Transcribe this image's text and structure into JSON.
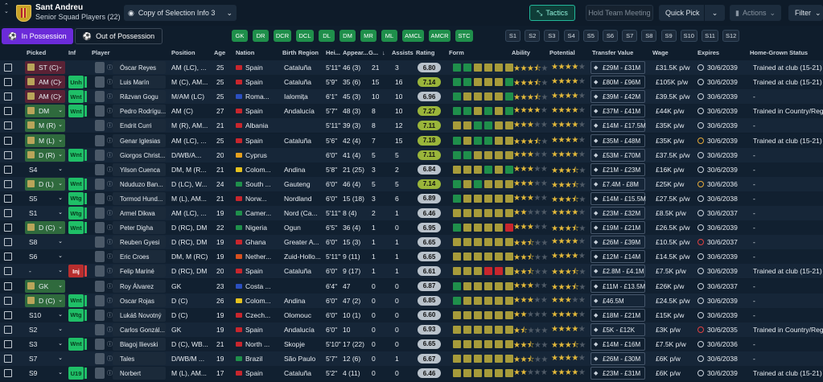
{
  "header": {
    "club_name": "Sant Andreu",
    "squad_label": "Senior Squad Players (22)",
    "selection_view": "Copy of Selection Info 3",
    "tactics_label": "Tactics",
    "hold_meeting_label": "Hold Team Meeting",
    "quick_pick_label": "Quick Pick",
    "actions_label": "Actions",
    "filter_label": "Filter"
  },
  "possession_tabs": {
    "in": "In Possession",
    "out": "Out of Possession"
  },
  "position_chips": [
    "GK",
    "DR",
    "DCR",
    "DCL",
    "DL",
    "DM",
    "MR",
    "ML",
    "AMCL",
    "AMCR",
    "STC"
  ],
  "set_chips": [
    "S1",
    "S2",
    "S3",
    "S4",
    "S5",
    "S6",
    "S7",
    "S8",
    "S9",
    "S10",
    "S11",
    "S12"
  ],
  "columns": {
    "picked": "Picked",
    "inf": "Inf",
    "player": "Player",
    "position": "Position",
    "age": "Age",
    "nation": "Nation",
    "birth_region": "Birth Region",
    "height": "Hei...",
    "appearances": "Appear...",
    "goals": "G...",
    "assists": "Assists",
    "rating": "Rating",
    "form": "Form",
    "ability": "Ability",
    "potential": "Potential",
    "transfer_value": "Transfer Value",
    "wage": "Wage",
    "expires": "Expires",
    "home_grown": "Home-Grown Status"
  },
  "colors": {
    "form_green": "#1f8f4b",
    "form_olive": "#a79b3a",
    "form_red": "#c8262d",
    "form_gray": "#59636e"
  },
  "players": [
    {
      "picked": "ST (C)",
      "picked_style": "selr",
      "inf": "",
      "name": "Óscar Reyes",
      "position": "AM (LC), ...",
      "age": "25",
      "nation": "Spain",
      "flag": "#c8262d",
      "birth_region": "Cataluña",
      "height": "5'11\"",
      "apps": "46 (3)",
      "goals": "21",
      "assists": "3",
      "rating": "6.80",
      "rating_good": false,
      "form": [
        "g",
        "g",
        "o",
        "o",
        "o",
        "o"
      ],
      "ability": 3.5,
      "potential": 4,
      "value": "£29M - £31M",
      "wage": "£31.5K p/w",
      "exp_icon": "w",
      "expires": "30/6/2039",
      "hg": "Trained at club (15-21)"
    },
    {
      "picked": "AM (C)",
      "picked_style": "selr",
      "inf": "Unh",
      "inf_color": "g",
      "name": "Luis Marín",
      "position": "M (C), AM...",
      "age": "25",
      "nation": "Spain",
      "flag": "#c8262d",
      "birth_region": "Cataluña",
      "height": "5'9\"",
      "apps": "35 (6)",
      "goals": "15",
      "assists": "16",
      "rating": "7.14",
      "rating_good": true,
      "form": [
        "g",
        "g",
        "o",
        "o",
        "o",
        "g"
      ],
      "ability": 3.5,
      "potential": 4,
      "value": "£80M - £96M",
      "wage": "£105K p/w",
      "exp_icon": "w",
      "expires": "30/6/2039",
      "hg": "Trained at club (15-21)"
    },
    {
      "picked": "AM (C)",
      "picked_style": "selr",
      "inf": "Wnt",
      "inf_color": "g",
      "name": "Răzvan Gogu",
      "position": "M/AM (LC)",
      "age": "25",
      "nation": "Roma...",
      "flag": "#2b4fbf",
      "birth_region": "Ialomița",
      "height": "6'1\"",
      "apps": "45 (3)",
      "goals": "10",
      "assists": "10",
      "rating": "6.96",
      "rating_good": false,
      "form": [
        "g",
        "o",
        "o",
        "o",
        "o",
        "g"
      ],
      "ability": 3.5,
      "potential": 4,
      "value": "£39M - £42M",
      "wage": "£39.5K p/w",
      "exp_icon": "w",
      "expires": "30/6/2039",
      "hg": "-"
    },
    {
      "picked": "DM",
      "picked_style": "sel",
      "inf": "Wnt",
      "inf_color": "g",
      "name": "Pedro Rodrígu...",
      "position": "AM (C)",
      "age": "27",
      "nation": "Spain",
      "flag": "#c8262d",
      "birth_region": "Andalucía",
      "height": "5'7\"",
      "apps": "48 (3)",
      "goals": "8",
      "assists": "10",
      "rating": "7.27",
      "rating_good": true,
      "form": [
        "g",
        "g",
        "o",
        "g",
        "o",
        "g"
      ],
      "ability": 4,
      "potential": 4,
      "value": "£37M - £41M",
      "wage": "£44K p/w",
      "exp_icon": "w",
      "expires": "30/6/2039",
      "hg": "Trained in Country/Reg"
    },
    {
      "picked": "M (R)",
      "picked_style": "sel",
      "inf": "",
      "name": "Endrit Curri",
      "position": "M (R), AM...",
      "age": "21",
      "nation": "Albania",
      "flag": "#c8262d",
      "birth_region": "",
      "height": "5'11\"",
      "apps": "39 (3)",
      "goals": "8",
      "assists": "12",
      "rating": "7.11",
      "rating_good": true,
      "form": [
        "o",
        "o",
        "g",
        "g",
        "o",
        "o"
      ],
      "ability": 3,
      "potential": 4,
      "value": "£14M - £17.5M",
      "wage": "£35K p/w",
      "exp_icon": "w",
      "expires": "30/6/2039",
      "hg": "-"
    },
    {
      "picked": "M (L)",
      "picked_style": "sel",
      "inf": "",
      "name": "Genar Iglesias",
      "position": "AM (LC), ...",
      "age": "25",
      "nation": "Spain",
      "flag": "#c8262d",
      "birth_region": "Cataluña",
      "height": "5'6\"",
      "apps": "42 (4)",
      "goals": "7",
      "assists": "15",
      "rating": "7.18",
      "rating_good": true,
      "form": [
        "g",
        "o",
        "g",
        "g",
        "o",
        "o"
      ],
      "ability": 3.5,
      "potential": 4,
      "value": "£35M - £48M",
      "wage": "£35K p/w",
      "exp_icon": "o",
      "expires": "30/6/2039",
      "hg": "Trained at club (15-21)"
    },
    {
      "picked": "D (R)",
      "picked_style": "sel",
      "inf": "Wnt",
      "inf_color": "g",
      "name": "Giorgos Christ...",
      "position": "D/WB/A...",
      "age": "20",
      "nation": "Cyprus",
      "flag": "#e6a11f",
      "birth_region": "",
      "height": "6'0\"",
      "apps": "41 (4)",
      "goals": "5",
      "assists": "5",
      "rating": "7.11",
      "rating_good": true,
      "form": [
        "g",
        "g",
        "o",
        "o",
        "o",
        "o"
      ],
      "ability": 3,
      "potential": 4,
      "value": "£53M - £70M",
      "wage": "£37.5K p/w",
      "exp_icon": "w",
      "expires": "30/6/2039",
      "hg": "-"
    },
    {
      "picked": "S4",
      "picked_style": "plain",
      "inf": "",
      "name": "Yilson Cuenca",
      "position": "DM, M (R...",
      "age": "21",
      "nation": "Colom...",
      "flag": "#e6c21f",
      "birth_region": "Andina",
      "height": "5'8\"",
      "apps": "21 (25)",
      "goals": "3",
      "assists": "2",
      "rating": "6.84",
      "rating_good": false,
      "form": [
        "o",
        "o",
        "o",
        "g",
        "o",
        "g"
      ],
      "ability": 3,
      "potential": 3.5,
      "value": "£21M - £23M",
      "wage": "£16K p/w",
      "exp_icon": "w",
      "expires": "30/6/2039",
      "hg": "-"
    },
    {
      "picked": "D (L)",
      "picked_style": "sel",
      "inf": "Wnt",
      "inf_color": "g",
      "name": "Nduduzo Ban...",
      "position": "D (LC), W...",
      "age": "24",
      "nation": "South ...",
      "flag": "#1f8f4b",
      "birth_region": "Gauteng",
      "height": "6'0\"",
      "apps": "46 (4)",
      "goals": "5",
      "assists": "5",
      "rating": "7.14",
      "rating_good": true,
      "form": [
        "g",
        "o",
        "g",
        "o",
        "o",
        "o"
      ],
      "ability": 3,
      "potential": 3.5,
      "value": "£7.4M - £8M",
      "wage": "£25K p/w",
      "exp_icon": "o",
      "expires": "30/6/2036",
      "hg": "-"
    },
    {
      "picked": "S5",
      "picked_style": "plain",
      "inf": "Wtg",
      "inf_color": "g",
      "name": "Tormod Hund...",
      "position": "M (L), AM...",
      "age": "21",
      "nation": "Norw...",
      "flag": "#c8262d",
      "birth_region": "Nordland",
      "height": "6'0\"",
      "apps": "15 (18)",
      "goals": "3",
      "assists": "6",
      "rating": "6.89",
      "rating_good": false,
      "form": [
        "g",
        "o",
        "o",
        "o",
        "o",
        "o"
      ],
      "ability": 3,
      "potential": 3.5,
      "value": "£14M - £15.5M",
      "wage": "£27.5K p/w",
      "exp_icon": "w",
      "expires": "30/6/2038",
      "hg": "-"
    },
    {
      "picked": "S1",
      "picked_style": "plain",
      "inf": "Wtg",
      "inf_color": "g",
      "name": "Armel Dikwa",
      "position": "AM (LC), ...",
      "age": "19",
      "nation": "Camer...",
      "flag": "#1f8f4b",
      "birth_region": "Nord (Ca...",
      "height": "5'11\"",
      "apps": "8 (4)",
      "goals": "2",
      "assists": "1",
      "rating": "6.46",
      "rating_good": false,
      "form": [
        "o",
        "o",
        "o",
        "o",
        "o",
        "o"
      ],
      "ability": 2,
      "potential": 4,
      "value": "£23M - £32M",
      "wage": "£8.5K p/w",
      "exp_icon": "w",
      "expires": "30/6/2037",
      "hg": "-"
    },
    {
      "picked": "D (C)",
      "picked_style": "sel",
      "inf": "Wnt",
      "inf_color": "g",
      "name": "Peter Digha",
      "position": "D (RC), DM",
      "age": "22",
      "nation": "Nigeria",
      "flag": "#1f8f4b",
      "birth_region": "Ogun",
      "height": "6'5\"",
      "apps": "36 (4)",
      "goals": "1",
      "assists": "0",
      "rating": "6.95",
      "rating_good": false,
      "form": [
        "g",
        "o",
        "o",
        "o",
        "o",
        "r"
      ],
      "ability": 3,
      "potential": 3.5,
      "value": "£19M - £21M",
      "wage": "£26.5K p/w",
      "exp_icon": "w",
      "expires": "30/6/2039",
      "hg": "-"
    },
    {
      "picked": "S8",
      "picked_style": "plain",
      "inf": "",
      "name": "Reuben Gyesi",
      "position": "D (RC), DM",
      "age": "19",
      "nation": "Ghana",
      "flag": "#c8262d",
      "birth_region": "Greater A...",
      "height": "6'0\"",
      "apps": "15 (3)",
      "goals": "1",
      "assists": "1",
      "rating": "6.65",
      "rating_good": false,
      "form": [
        "o",
        "o",
        "o",
        "o",
        "o",
        "o"
      ],
      "ability": 2.5,
      "potential": 4,
      "value": "£26M - £39M",
      "wage": "£10.5K p/w",
      "exp_icon": "r",
      "expires": "30/6/2037",
      "hg": "-"
    },
    {
      "picked": "S6",
      "picked_style": "plain",
      "inf": "",
      "name": "Eric Croes",
      "position": "DM, M (RC)",
      "age": "19",
      "nation": "Nether...",
      "flag": "#d6501f",
      "birth_region": "Zuid-Hollo...",
      "height": "5'11\"",
      "apps": "9 (11)",
      "goals": "1",
      "assists": "1",
      "rating": "6.65",
      "rating_good": false,
      "form": [
        "o",
        "o",
        "o",
        "o",
        "o",
        "o"
      ],
      "ability": 2.5,
      "potential": 4,
      "value": "£12M - £14M",
      "wage": "£14.5K p/w",
      "exp_icon": "w",
      "expires": "30/6/2039",
      "hg": "-"
    },
    {
      "picked": "-",
      "picked_style": "plain",
      "inf": "Inj",
      "inf_color": "r",
      "name": "Felip Mariné",
      "position": "D (RC), DM",
      "age": "20",
      "nation": "Spain",
      "flag": "#c8262d",
      "birth_region": "Cataluña",
      "height": "6'0\"",
      "apps": "9 (17)",
      "goals": "1",
      "assists": "1",
      "rating": "6.61",
      "rating_good": false,
      "form": [
        "o",
        "o",
        "o",
        "r",
        "r",
        "o"
      ],
      "ability": 2.5,
      "potential": 3.5,
      "value": "£2.8M - £4.1M",
      "wage": "£7.5K p/w",
      "exp_icon": "w",
      "expires": "30/6/2039",
      "hg": "Trained at club (15-21)"
    },
    {
      "picked": "GK",
      "picked_style": "sel",
      "inf": "",
      "name": "Roy Álvarez",
      "position": "GK",
      "age": "23",
      "nation": "Costa ...",
      "flag": "#2b4fbf",
      "birth_region": "",
      "height": "6'4\"",
      "apps": "47",
      "goals": "0",
      "assists": "0",
      "rating": "6.87",
      "rating_good": false,
      "form": [
        "g",
        "o",
        "o",
        "o",
        "o",
        "o"
      ],
      "ability": 3,
      "potential": 3.5,
      "value": "£11M - £13.5M",
      "wage": "£26K p/w",
      "exp_icon": "w",
      "expires": "30/6/2037",
      "hg": "-"
    },
    {
      "picked": "D (C)",
      "picked_style": "sel",
      "inf": "Wnt",
      "inf_color": "g",
      "name": "Oscar Rojas",
      "position": "D (C)",
      "age": "26",
      "nation": "Colom...",
      "flag": "#e6c21f",
      "birth_region": "Andina",
      "height": "6'0\"",
      "apps": "47 (2)",
      "goals": "0",
      "assists": "0",
      "rating": "6.85",
      "rating_good": false,
      "form": [
        "g",
        "o",
        "o",
        "o",
        "o",
        "o"
      ],
      "ability": 3,
      "potential": 3,
      "value": "£46.5M",
      "wage": "£24.5K p/w",
      "exp_icon": "w",
      "expires": "30/6/2039",
      "hg": "-"
    },
    {
      "picked": "S10",
      "picked_style": "plain",
      "inf": "Wtg",
      "inf_color": "g",
      "name": "Lukáš Novotný",
      "position": "D (C)",
      "age": "19",
      "nation": "Czech...",
      "flag": "#c8262d",
      "birth_region": "Olomouc",
      "height": "6'0\"",
      "apps": "10 (1)",
      "goals": "0",
      "assists": "0",
      "rating": "6.60",
      "rating_good": false,
      "form": [
        "o",
        "o",
        "o",
        "o",
        "o",
        "o"
      ],
      "ability": 2,
      "potential": 4,
      "value": "£18M - £21M",
      "wage": "£15K p/w",
      "exp_icon": "w",
      "expires": "30/6/2039",
      "hg": "-"
    },
    {
      "picked": "S2",
      "picked_style": "plain",
      "inf": "",
      "name": "Carlos Gonzál...",
      "position": "GK",
      "age": "19",
      "nation": "Spain",
      "flag": "#c8262d",
      "birth_region": "Andalucía",
      "height": "6'0\"",
      "apps": "10",
      "goals": "0",
      "assists": "0",
      "rating": "6.93",
      "rating_good": false,
      "form": [
        "o",
        "o",
        "o",
        "o",
        "o",
        "o"
      ],
      "ability": 1.5,
      "potential": 4,
      "value": "£5K - £12K",
      "wage": "£3K p/w",
      "exp_icon": "r",
      "expires": "30/6/2035",
      "hg": "Trained in Country/Reg"
    },
    {
      "picked": "S3",
      "picked_style": "plain",
      "inf": "Wnt",
      "inf_color": "g",
      "name": "Blagoj Ilievski",
      "position": "D (C), WB...",
      "age": "21",
      "nation": "North ...",
      "flag": "#c8262d",
      "birth_region": "Skopje",
      "height": "5'10\"",
      "apps": "17 (22)",
      "goals": "0",
      "assists": "0",
      "rating": "6.65",
      "rating_good": false,
      "form": [
        "o",
        "o",
        "o",
        "o",
        "o",
        "o"
      ],
      "ability": 2.5,
      "potential": 3.5,
      "value": "£14M - £16M",
      "wage": "£7.5K p/w",
      "exp_icon": "w",
      "expires": "30/6/2036",
      "hg": "-"
    },
    {
      "picked": "S7",
      "picked_style": "plain",
      "inf": "",
      "name": "Tales",
      "position": "D/WB/M ...",
      "age": "19",
      "nation": "Brazil",
      "flag": "#1f8f4b",
      "birth_region": "São Paulo",
      "height": "5'7\"",
      "apps": "12 (6)",
      "goals": "0",
      "assists": "1",
      "rating": "6.67",
      "rating_good": false,
      "form": [
        "o",
        "o",
        "o",
        "o",
        "o",
        "o"
      ],
      "ability": 2.5,
      "potential": 4,
      "value": "£26M - £30M",
      "wage": "£6K p/w",
      "exp_icon": "w",
      "expires": "30/6/2038",
      "hg": "-"
    },
    {
      "picked": "S9",
      "picked_style": "plain",
      "inf": "U19",
      "inf_color": "g",
      "name": "Norbert",
      "position": "M (L), AM...",
      "age": "17",
      "nation": "Spain",
      "flag": "#c8262d",
      "birth_region": "Cataluña",
      "height": "5'2\"",
      "apps": "4 (11)",
      "goals": "0",
      "assists": "0",
      "rating": "6.46",
      "rating_good": false,
      "form": [
        "o",
        "o",
        "o",
        "o",
        "o",
        "o"
      ],
      "ability": 2,
      "potential": 4,
      "value": "£23M - £31M",
      "wage": "£6K p/w",
      "exp_icon": "w",
      "expires": "30/6/2039",
      "hg": "Trained at club (15-21)"
    }
  ]
}
